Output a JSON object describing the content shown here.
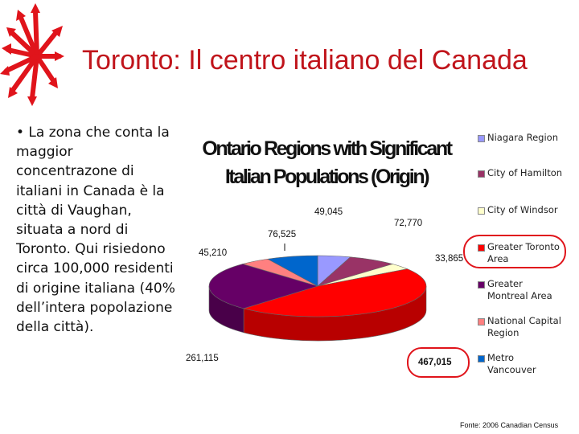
{
  "slide": {
    "title": "Toronto: Il centro italiano del Canada",
    "body": "• La zona che conta la maggior concentrazone di italiani in Canada è la città di Vaughan, situata a nord di Toronto. Qui risiedono circa 100,000 residenti di origine italiana (40% dell’intera popolazione della città).",
    "source": "Fonte: 2006 Canadian Census",
    "accent_color": "#c0141b",
    "logo_icon": "red-arrows-logo-icon"
  },
  "chart_data": {
    "type": "pie",
    "title": "Ontario Regions with Significant Italian Populations (Origin)",
    "legend_position": "right",
    "highlight": "Greater Toronto Area",
    "series": [
      {
        "name": "Niagara Region",
        "value": 49045,
        "label": "49,045",
        "color": "#9999ff"
      },
      {
        "name": "City of Hamilton",
        "value": 72770,
        "label": "72,770",
        "color": "#993366"
      },
      {
        "name": "City of Windsor",
        "value": 33865,
        "label": "33,865",
        "color": "#ffffcc"
      },
      {
        "name": "Greater Toronto Area",
        "value": 467015,
        "label": "467,015",
        "color": "#ff0000"
      },
      {
        "name": "Greater Montreal Area",
        "value": 261115,
        "label": "261,115",
        "color": "#660066"
      },
      {
        "name": "National Capital Region",
        "value": 45210,
        "label": "45,210",
        "color": "#ff8080"
      },
      {
        "name": "Metro Vancouver",
        "value": 76525,
        "label": "76,525",
        "color": "#0066cc"
      }
    ],
    "legend_lines": [
      [
        "Niagara Region"
      ],
      [
        "City of Hamilton"
      ],
      [
        "City of Windsor"
      ],
      [
        "Greater Toronto",
        "Area"
      ],
      [
        "Greater",
        "Montreal Area"
      ],
      [
        "National Capital",
        "Region"
      ],
      [
        "Metro",
        "Vancouver"
      ]
    ]
  }
}
